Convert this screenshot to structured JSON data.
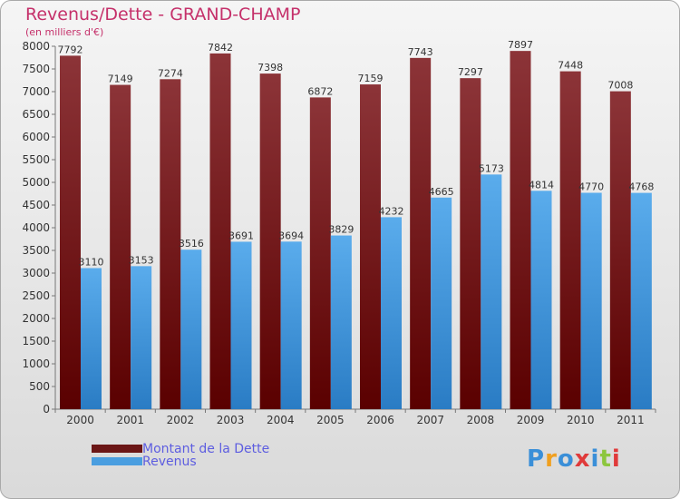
{
  "title": "Revenus/Dette - GRAND-CHAMP",
  "subtitle": "(en milliers d'€)",
  "colors": {
    "dette_top": "#8c3438",
    "dette_bottom": "#5a0000",
    "revenus_top": "#5aacec",
    "revenus_bottom": "#2a7cc4",
    "title": "#c5306a",
    "legend_text": "#5d5de0"
  },
  "legend": [
    {
      "label": "Montant de la Dette",
      "color": "#6b1616"
    },
    {
      "label": "Revenus",
      "color": "#4a9ee0"
    }
  ],
  "logo": {
    "letters": [
      {
        "ch": "P",
        "color": "#3a8fd8"
      },
      {
        "ch": "r",
        "color": "#f0a020"
      },
      {
        "ch": "o",
        "color": "#3a8fd8"
      },
      {
        "ch": "x",
        "color": "#e03a3a"
      },
      {
        "ch": "i",
        "color": "#3a8fd8"
      },
      {
        "ch": "t",
        "color": "#8cc63e"
      },
      {
        "ch": "i",
        "color": "#e03a3a"
      }
    ]
  },
  "chart_data": {
    "type": "bar",
    "categories": [
      "2000",
      "2001",
      "2002",
      "2003",
      "2004",
      "2005",
      "2006",
      "2007",
      "2008",
      "2009",
      "2010",
      "2011"
    ],
    "series": [
      {
        "name": "Montant de la Dette",
        "values": [
          7792,
          7149,
          7274,
          7842,
          7398,
          6872,
          7159,
          7743,
          7297,
          7897,
          7448,
          7008
        ]
      },
      {
        "name": "Revenus",
        "values": [
          3110,
          3153,
          3516,
          3691,
          3694,
          3829,
          4232,
          4665,
          5173,
          4814,
          4770,
          4768
        ]
      }
    ],
    "y_ticks": [
      "0",
      "500",
      "1000",
      "1500",
      "2000",
      "2500",
      "3000",
      "3500",
      "4000",
      "4500",
      "5000",
      "5500",
      "6000",
      "6500",
      "7000",
      "7500",
      "8000"
    ],
    "ylim": [
      0,
      8000
    ],
    "grid": false,
    "legend_position": "bottom-left"
  }
}
